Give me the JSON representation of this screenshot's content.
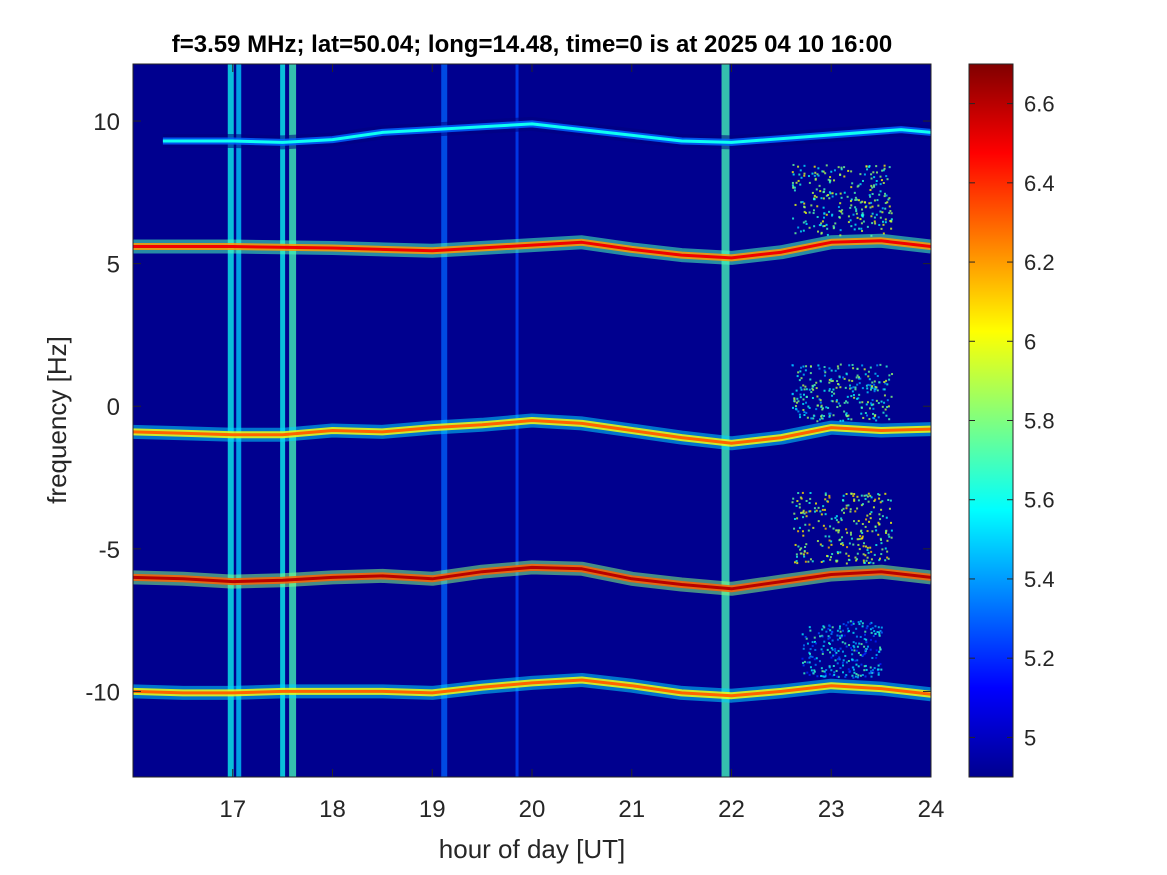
{
  "chart_data": {
    "type": "heatmap",
    "title": "f=3.59 MHz;  lat=50.04; long=14.48, time=0 is at 2025 04 10 16:00",
    "xlabel": "hour of day [UT]",
    "ylabel": "frequency [Hz]",
    "xlim": [
      16,
      24
    ],
    "ylim": [
      -13,
      12
    ],
    "xticks": [
      "17",
      "18",
      "19",
      "20",
      "21",
      "22",
      "23",
      "24"
    ],
    "yticks": [
      "10",
      "5",
      "0",
      "-5",
      "-10"
    ],
    "xtick_values": [
      17,
      18,
      19,
      20,
      21,
      22,
      23,
      24
    ],
    "ytick_values": [
      10,
      5,
      0,
      -5,
      -10
    ],
    "colormap": "jet",
    "colorbar": {
      "limits": [
        4.9,
        6.7
      ],
      "ticks": [
        "6.6",
        "6.4",
        "6.2",
        "6",
        "5.8",
        "5.6",
        "5.4",
        "5.2",
        "5"
      ],
      "tick_values": [
        6.6,
        6.4,
        6.2,
        6.0,
        5.8,
        5.6,
        5.4,
        5.2,
        5.0
      ]
    },
    "background_color": "#00008f",
    "traces": [
      {
        "center_hz": 9.5,
        "points": [
          [
            16.3,
            9.3
          ],
          [
            17.0,
            9.3
          ],
          [
            17.5,
            9.25
          ],
          [
            18.0,
            9.35
          ],
          [
            18.5,
            9.6
          ],
          [
            19.0,
            9.7
          ],
          [
            19.5,
            9.8
          ],
          [
            20.0,
            9.9
          ],
          [
            20.5,
            9.7
          ],
          [
            21.0,
            9.5
          ],
          [
            21.5,
            9.3
          ],
          [
            22.0,
            9.25
          ],
          [
            23.7,
            9.7
          ],
          [
            24.0,
            9.6
          ]
        ],
        "intensity": 5.6
      },
      {
        "center_hz": 5.5,
        "points": [
          [
            16.0,
            5.6
          ],
          [
            17.0,
            5.6
          ],
          [
            18.0,
            5.55
          ],
          [
            19.0,
            5.45
          ],
          [
            20.0,
            5.65
          ],
          [
            20.5,
            5.75
          ],
          [
            21.0,
            5.5
          ],
          [
            21.5,
            5.3
          ],
          [
            22.0,
            5.2
          ],
          [
            22.5,
            5.4
          ],
          [
            23.0,
            5.75
          ],
          [
            23.5,
            5.8
          ],
          [
            24.0,
            5.6
          ]
        ],
        "intensity": 6.5
      },
      {
        "center_hz": -1,
        "points": [
          [
            16.0,
            -0.9
          ],
          [
            16.5,
            -0.95
          ],
          [
            17.0,
            -1.0
          ],
          [
            17.5,
            -1.0
          ],
          [
            18.0,
            -0.85
          ],
          [
            18.5,
            -0.9
          ],
          [
            19.0,
            -0.75
          ],
          [
            19.5,
            -0.65
          ],
          [
            20.0,
            -0.5
          ],
          [
            20.5,
            -0.6
          ],
          [
            21.0,
            -0.85
          ],
          [
            21.5,
            -1.1
          ],
          [
            22.0,
            -1.3
          ],
          [
            22.5,
            -1.1
          ],
          [
            23.0,
            -0.75
          ],
          [
            23.5,
            -0.85
          ],
          [
            24.0,
            -0.8
          ]
        ],
        "intensity": 6.3
      },
      {
        "center_hz": -6,
        "points": [
          [
            16.0,
            -6.0
          ],
          [
            16.5,
            -6.05
          ],
          [
            17.0,
            -6.15
          ],
          [
            17.5,
            -6.1
          ],
          [
            18.0,
            -6.0
          ],
          [
            18.5,
            -5.95
          ],
          [
            19.0,
            -6.05
          ],
          [
            19.5,
            -5.8
          ],
          [
            20.0,
            -5.65
          ],
          [
            20.5,
            -5.7
          ],
          [
            21.0,
            -6.05
          ],
          [
            21.5,
            -6.25
          ],
          [
            22.0,
            -6.4
          ],
          [
            22.5,
            -6.15
          ],
          [
            23.0,
            -5.9
          ],
          [
            23.5,
            -5.8
          ],
          [
            24.0,
            -6.0
          ]
        ],
        "intensity": 6.6
      },
      {
        "center_hz": -10,
        "points": [
          [
            16.0,
            -10.0
          ],
          [
            16.5,
            -10.05
          ],
          [
            17.0,
            -10.05
          ],
          [
            17.5,
            -10.0
          ],
          [
            18.0,
            -10.0
          ],
          [
            18.5,
            -10.0
          ],
          [
            19.0,
            -10.05
          ],
          [
            19.5,
            -9.85
          ],
          [
            20.0,
            -9.7
          ],
          [
            20.5,
            -9.6
          ],
          [
            21.0,
            -9.8
          ],
          [
            21.5,
            -10.05
          ],
          [
            22.0,
            -10.15
          ],
          [
            22.5,
            -10.0
          ],
          [
            23.0,
            -9.8
          ],
          [
            23.5,
            -9.9
          ],
          [
            24.0,
            -10.1
          ]
        ],
        "intensity": 6.3
      }
    ],
    "vertical_bands": [
      {
        "hour": 16.98,
        "width_h": 0.06,
        "intensity": 5.6
      },
      {
        "hour": 17.06,
        "width_h": 0.05,
        "intensity": 5.5
      },
      {
        "hour": 17.5,
        "width_h": 0.05,
        "intensity": 5.6
      },
      {
        "hour": 17.6,
        "width_h": 0.07,
        "intensity": 5.7
      },
      {
        "hour": 19.12,
        "width_h": 0.06,
        "intensity": 5.3
      },
      {
        "hour": 19.85,
        "width_h": 0.03,
        "intensity": 5.25
      },
      {
        "hour": 21.94,
        "width_h": 0.08,
        "intensity": 5.7
      }
    ],
    "diffuse_regions": [
      {
        "hour_range": [
          22.6,
          23.6
        ],
        "freq_range": [
          6.0,
          8.5
        ],
        "intensity": 5.7
      },
      {
        "hour_range": [
          22.6,
          23.6
        ],
        "freq_range": [
          -0.5,
          1.5
        ],
        "intensity": 5.6
      },
      {
        "hour_range": [
          22.6,
          23.6
        ],
        "freq_range": [
          -5.5,
          -3.0
        ],
        "intensity": 5.8
      },
      {
        "hour_range": [
          22.7,
          23.5
        ],
        "freq_range": [
          -9.5,
          -7.5
        ],
        "intensity": 5.4
      }
    ]
  }
}
